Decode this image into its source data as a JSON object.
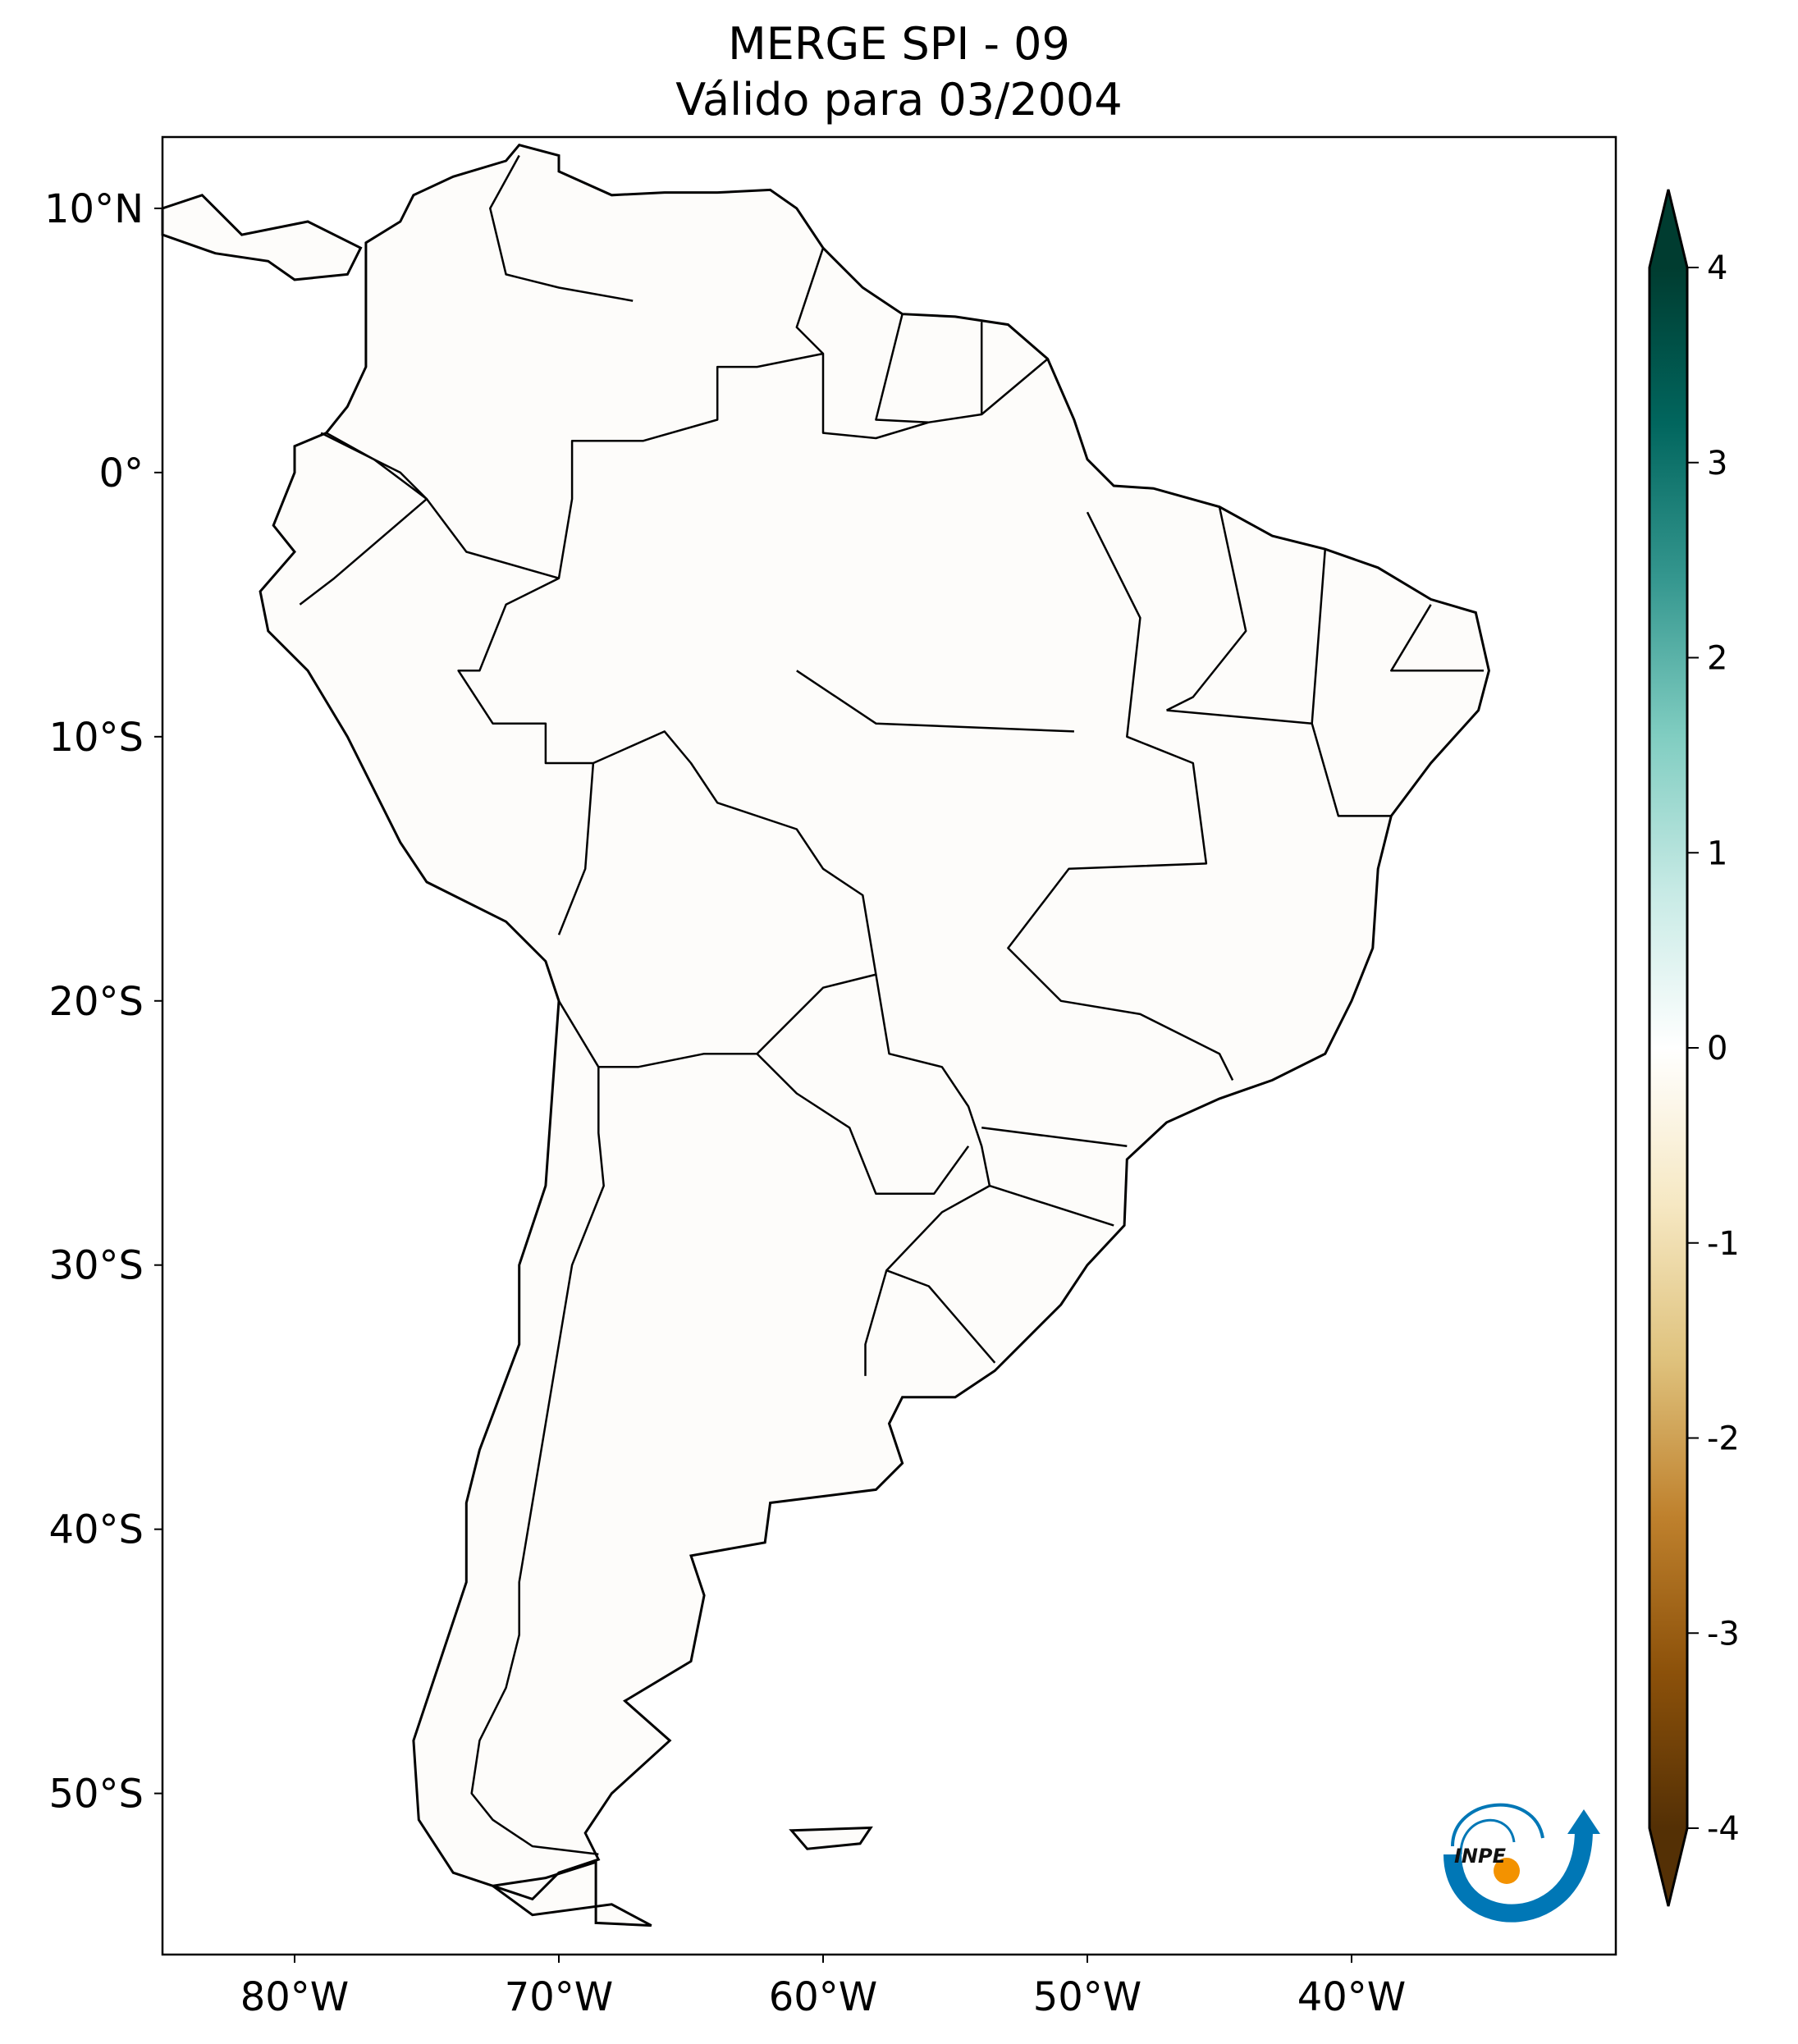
{
  "title": {
    "line1": "MERGE   SPI - 09",
    "line2": "Válido para 03/2004"
  },
  "map": {
    "extent_lon": [
      -85,
      -30
    ],
    "extent_lat": [
      -56.1,
      12.7
    ],
    "lat_ticks": [
      {
        "value": 10,
        "label": "10°N"
      },
      {
        "value": 0,
        "label": "0°"
      },
      {
        "value": -10,
        "label": "10°S"
      },
      {
        "value": -20,
        "label": "20°S"
      },
      {
        "value": -30,
        "label": "30°S"
      },
      {
        "value": -40,
        "label": "40°S"
      },
      {
        "value": -50,
        "label": "50°S"
      }
    ],
    "lon_ticks": [
      {
        "value": -80,
        "label": "80°W"
      },
      {
        "value": -70,
        "label": "70°W"
      },
      {
        "value": -60,
        "label": "60°W"
      },
      {
        "value": -50,
        "label": "50°W"
      },
      {
        "value": -40,
        "label": "40°W"
      }
    ]
  },
  "colorbar": {
    "min": -4,
    "max": 4,
    "ticks": [
      {
        "value": 4,
        "label": "4"
      },
      {
        "value": 3,
        "label": "3"
      },
      {
        "value": 2,
        "label": "2"
      },
      {
        "value": 1,
        "label": "1"
      },
      {
        "value": 0,
        "label": "0"
      },
      {
        "value": -1,
        "label": "-1"
      },
      {
        "value": -2,
        "label": "-2"
      },
      {
        "value": -3,
        "label": "-3"
      },
      {
        "value": -4,
        "label": "-4"
      }
    ],
    "colors": [
      "#543005",
      "#8c510a",
      "#bf812d",
      "#dfc27d",
      "#f6e8c3",
      "#ffffff",
      "#c7eae5",
      "#80cdc1",
      "#35978f",
      "#01665e",
      "#003c30"
    ]
  },
  "logo": {
    "text": "INPE",
    "blue": "#0077b6",
    "orange": "#f39200"
  }
}
